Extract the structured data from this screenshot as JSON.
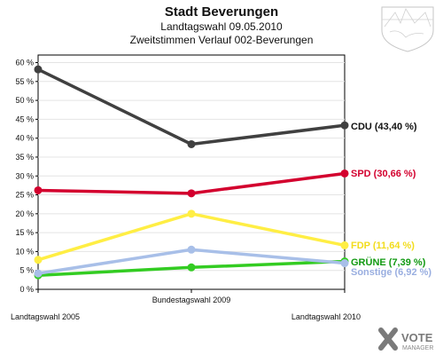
{
  "chart_data": {
    "type": "line",
    "title": "Stadt Beverungen",
    "subtitle_1": "Landtagswahl 09.05.2010",
    "subtitle_2": "Zweitstimmen Verlauf 002-Beverungen",
    "categories": [
      "Landtagswahl 2005",
      "Bundestagswahl 2009",
      "Landtagswahl 2010"
    ],
    "ylim": [
      0,
      62
    ],
    "yticks": [
      0,
      5,
      10,
      15,
      20,
      25,
      30,
      35,
      40,
      45,
      50,
      55,
      60
    ],
    "ytick_labels": [
      "0 %",
      "5 %",
      "10 %",
      "15 %",
      "20 %",
      "25 %",
      "30 %",
      "35 %",
      "40 %",
      "45 %",
      "50 %",
      "55 %",
      "60 %"
    ],
    "series": [
      {
        "key": "cdu",
        "name": "CDU",
        "label": "CDU (43,40 %)",
        "color": "#404040",
        "label_color": "#111111",
        "values": [
          58.2,
          38.4,
          43.4
        ]
      },
      {
        "key": "spd",
        "name": "SPD",
        "label": "SPD (30,66 %)",
        "color": "#d3002e",
        "label_color": "#d3002e",
        "values": [
          26.2,
          25.4,
          30.66
        ]
      },
      {
        "key": "fdp",
        "name": "FDP",
        "label": "FDP (11,64 %)",
        "color": "#ffee44",
        "label_color": "#f2dc1d",
        "values": [
          7.8,
          20.0,
          11.64
        ]
      },
      {
        "key": "gruene",
        "name": "GRÜNE",
        "label": "GRÜNE (7,39 %)",
        "color": "#33cc22",
        "label_color": "#119911",
        "values": [
          3.7,
          5.8,
          7.39
        ]
      },
      {
        "key": "sonstige",
        "name": "Sonstige",
        "label": "Sonstige (6,92 %)",
        "color": "#a8bfe8",
        "label_color": "#99aee0",
        "values": [
          4.2,
          10.5,
          6.92
        ]
      }
    ]
  },
  "branding": {
    "logo_text_1": "VOTE",
    "logo_text_2": "MANAGER"
  }
}
